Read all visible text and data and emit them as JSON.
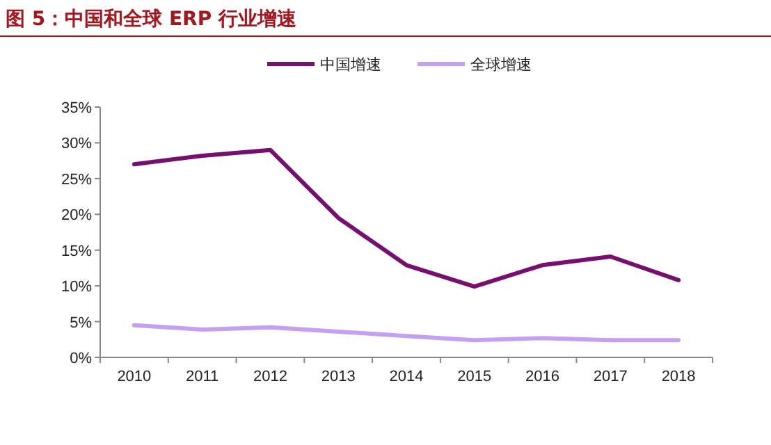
{
  "chart_data": {
    "type": "line",
    "title": "图 5：中国和全球 ERP 行业增速",
    "categories": [
      "2010",
      "2011",
      "2012",
      "2013",
      "2014",
      "2015",
      "2016",
      "2017",
      "2018"
    ],
    "series": [
      {
        "name": "中国增速",
        "color": "#76106f",
        "values": [
          27,
          28.2,
          29,
          19.5,
          12.9,
          9.9,
          12.9,
          14.1,
          10.8
        ]
      },
      {
        "name": "全球增速",
        "color": "#c4a0f2",
        "values": [
          4.5,
          3.9,
          4.2,
          3.6,
          3.0,
          2.4,
          2.7,
          2.4,
          2.4
        ]
      }
    ],
    "ylim": [
      0,
      35
    ],
    "yticks": [
      {
        "value": 0,
        "label": "0%"
      },
      {
        "value": 5,
        "label": "5%"
      },
      {
        "value": 10,
        "label": "10%"
      },
      {
        "value": 15,
        "label": "15%"
      },
      {
        "value": 20,
        "label": "20%"
      },
      {
        "value": 25,
        "label": "25%"
      },
      {
        "value": 30,
        "label": "30%"
      },
      {
        "value": 35,
        "label": "35%"
      }
    ],
    "legend": "top",
    "grid": false,
    "marker": "none",
    "line_style": "solid"
  }
}
